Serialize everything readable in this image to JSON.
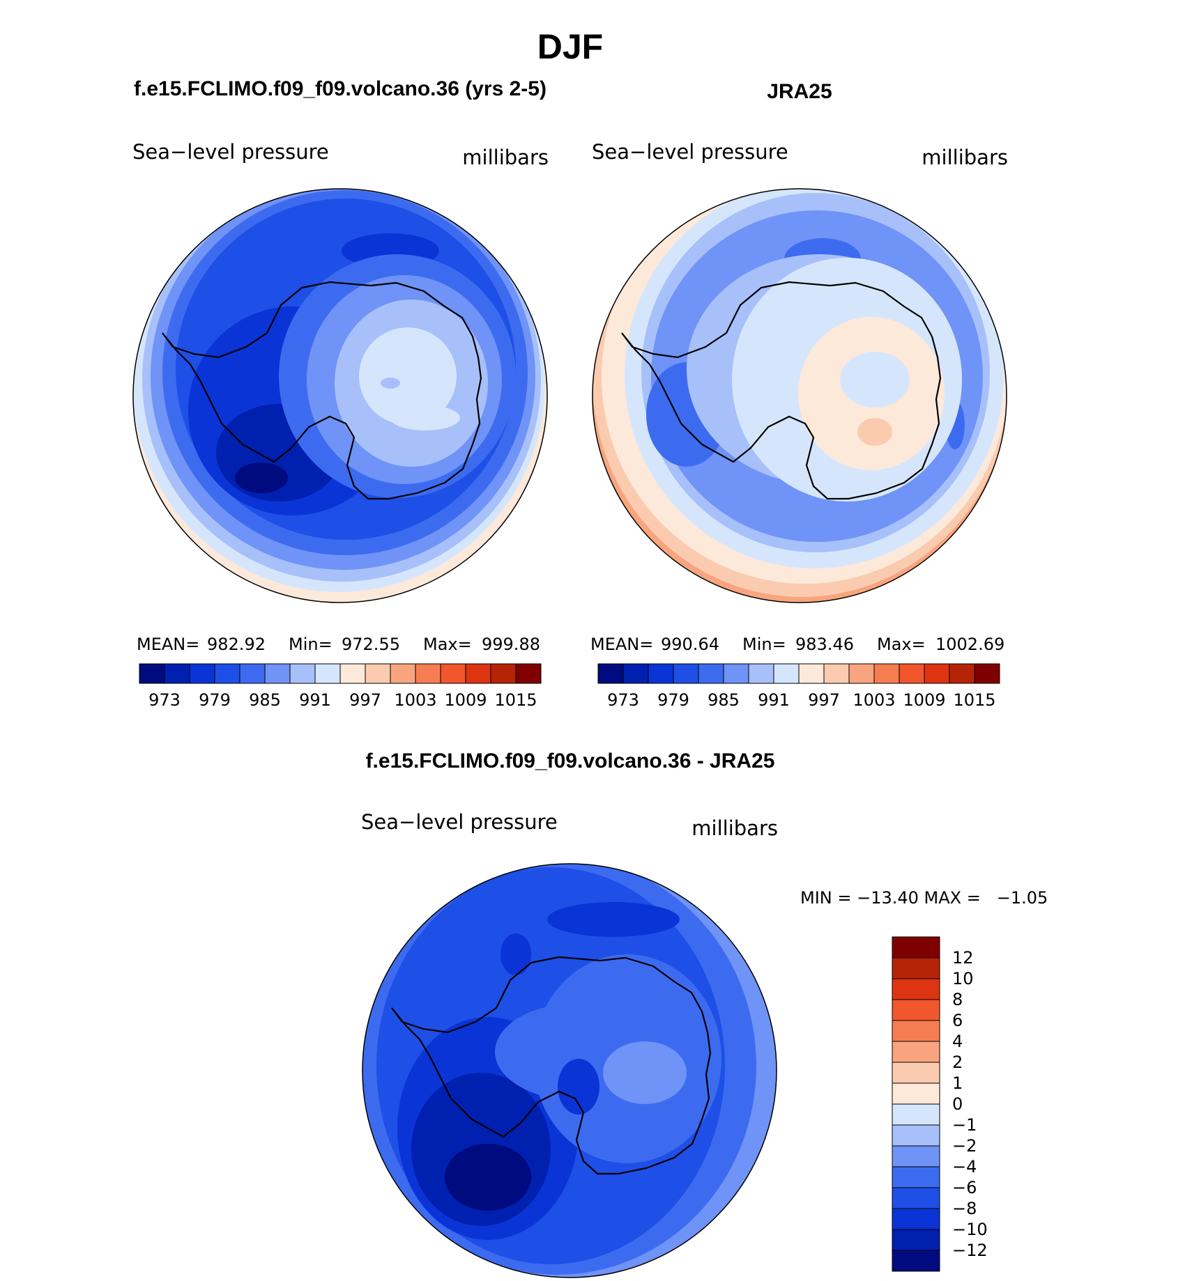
{
  "page_title": "DJF",
  "colors": {
    "pressure_scale": [
      "#000b7f",
      "#0020b0",
      "#0a34d6",
      "#1e4fe6",
      "#3d6bf0",
      "#6f93f6",
      "#a7c0fa",
      "#d5e6fc",
      "#fde9da",
      "#fbcbb0",
      "#f8a57f",
      "#f67d52",
      "#f2562d",
      "#dd3512",
      "#b62408",
      "#7f0000"
    ],
    "diff_scale": [
      "#000b7f",
      "#0020b0",
      "#0a34d6",
      "#1e4fe6",
      "#3d6bf0",
      "#6f93f6",
      "#a7c0fa",
      "#d5e6fc",
      "#fde9da",
      "#fbcbb0",
      "#f8a57f",
      "#f67d52",
      "#f2562d",
      "#dd3512",
      "#b62408",
      "#7f0000"
    ],
    "coastline": "#000000"
  },
  "panels": {
    "model": {
      "title": "f.e15.FCLIMO.f09_f09.volcano.36 (yrs 2-5)",
      "variable": "Sea−level pressure",
      "units": "millibars",
      "stats": {
        "mean_label": "MEAN=",
        "mean": "982.92",
        "min_label": "Min=",
        "min": "972.55",
        "max_label": "Max=",
        "max": "999.88"
      },
      "colorbar_ticks": [
        "973",
        "979",
        "985",
        "991",
        "997",
        "1003",
        "1009",
        "1015"
      ]
    },
    "obs": {
      "title": "JRA25",
      "variable": "Sea−level pressure",
      "units": "millibars",
      "stats": {
        "mean_label": "MEAN=",
        "mean": "990.64",
        "min_label": "Min=",
        "min": "983.46",
        "max_label": "Max=",
        "max": "1002.69"
      },
      "colorbar_ticks": [
        "973",
        "979",
        "985",
        "991",
        "997",
        "1003",
        "1009",
        "1015"
      ]
    },
    "diff": {
      "title": "f.e15.FCLIMO.f09_f09.volcano.36 - JRA25",
      "variable": "Sea−level pressure",
      "units": "millibars",
      "minmax_text": "MIN = −13.40 MAX =   −1.05",
      "colorbar_ticks": [
        "12",
        "10",
        "8",
        "6",
        "4",
        "2",
        "1",
        "0",
        "−1",
        "−2",
        "−4",
        "−6",
        "−8",
        "−10",
        "−12"
      ]
    }
  }
}
